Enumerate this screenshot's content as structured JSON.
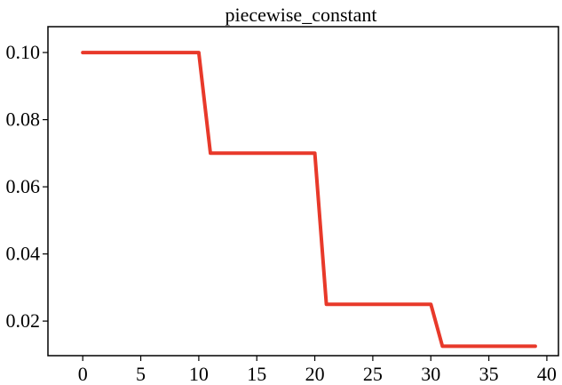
{
  "chart_data": {
    "type": "line",
    "title": "piecewise_constant",
    "xlabel": "",
    "ylabel": "",
    "xlim": [
      -3,
      41
    ],
    "ylim": [
      0.0097,
      0.1077
    ],
    "x_ticks": [
      "0",
      "5",
      "10",
      "15",
      "20",
      "25",
      "30",
      "35",
      "40"
    ],
    "y_ticks": [
      "0.02",
      "0.04",
      "0.06",
      "0.08",
      "0.10"
    ],
    "grid": false,
    "legend": "none",
    "series": [
      {
        "color": "#e8392a",
        "x": [
          0,
          10,
          11,
          20,
          21,
          30,
          31,
          39
        ],
        "y": [
          0.1,
          0.1,
          0.07,
          0.07,
          0.025,
          0.025,
          0.0125,
          0.0125
        ]
      }
    ]
  }
}
